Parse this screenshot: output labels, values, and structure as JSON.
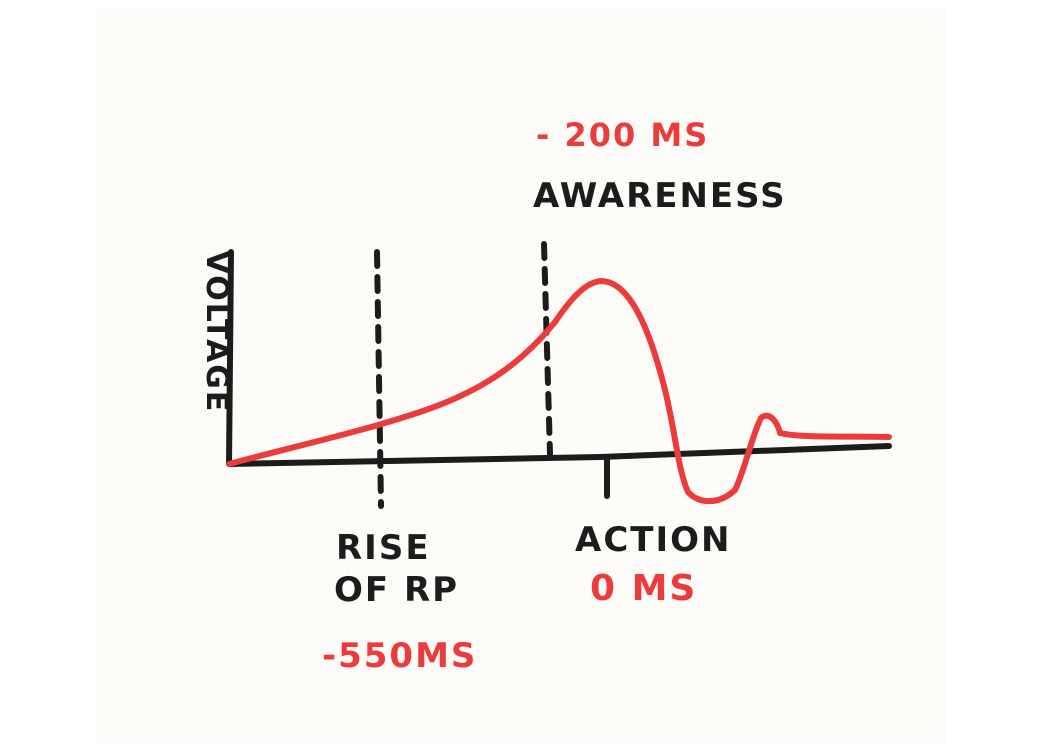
{
  "colors": {
    "ink": "#1c1c1c",
    "curve": "#ea3c3c",
    "paper": "#fdfbf7"
  },
  "labels": {
    "y_axis": "VOLTAGE",
    "awareness": "AWARENESS",
    "awareness_time": "- 200 MS",
    "rise_line1": "RISE",
    "rise_line2": "OF RP",
    "rise_time": "-550MS",
    "action": "ACTION",
    "action_time": "0 MS"
  }
}
